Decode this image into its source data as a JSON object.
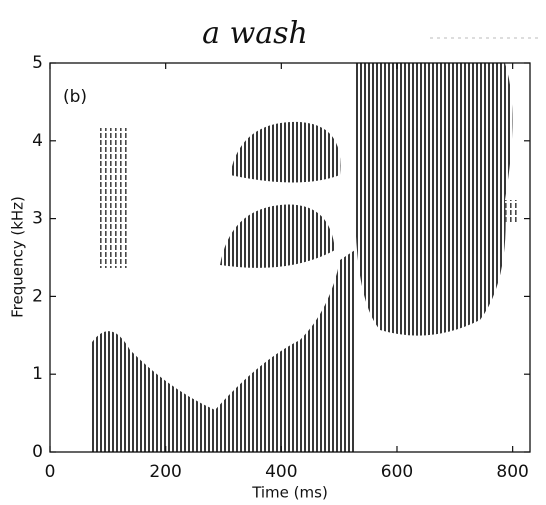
{
  "chart_data": {
    "type": "spectrogram",
    "title": "a wash",
    "annotation": "(b)",
    "x_label": "Time (ms)",
    "y_label": "Frequency (kHz)",
    "xlim": [
      0,
      830
    ],
    "ylim": [
      0,
      5
    ],
    "xticks": [
      0,
      200,
      400,
      600,
      800
    ],
    "yticks": [
      0,
      1,
      2,
      3,
      4,
      5
    ]
  }
}
